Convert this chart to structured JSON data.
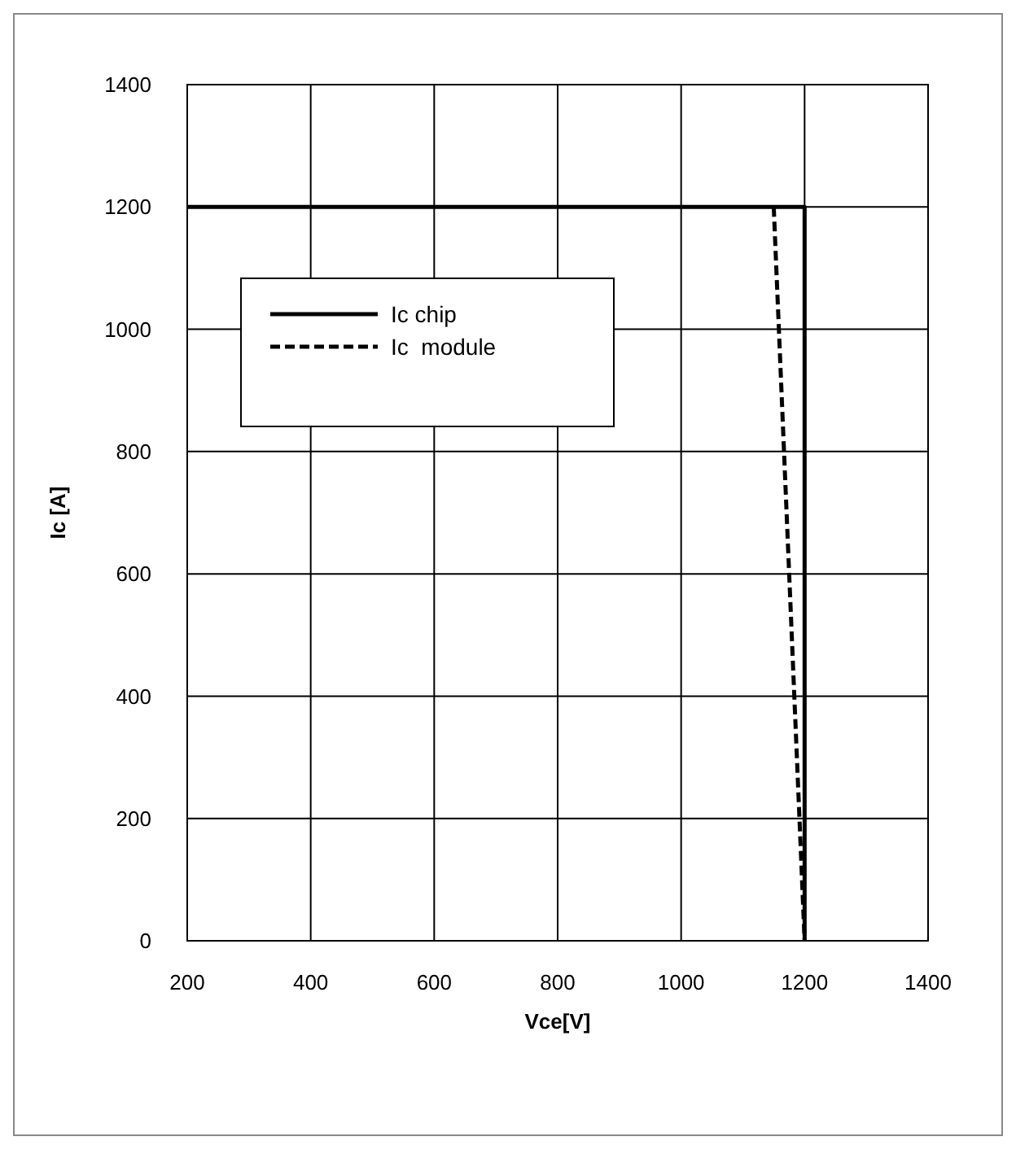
{
  "chart_data": {
    "type": "line",
    "xlabel": "Vce[V]",
    "ylabel": "Ic [A]",
    "xlim": [
      200,
      1400
    ],
    "ylim": [
      0,
      1400
    ],
    "xticks": [
      200,
      400,
      600,
      800,
      1000,
      1200,
      1400
    ],
    "yticks": [
      0,
      200,
      400,
      600,
      800,
      1000,
      1200,
      1400
    ],
    "grid": true,
    "legend": "top left",
    "series": [
      {
        "name": "Ic chip",
        "color": "#000000",
        "x": [
          200,
          1200,
          1200
        ],
        "values": [
          1200,
          1200,
          0
        ],
        "line_style": "solid"
      },
      {
        "name": "Ic  module",
        "color": "#000000",
        "x": [
          1150,
          1200
        ],
        "values": [
          1200,
          0
        ],
        "line_style": "dashed"
      }
    ]
  }
}
